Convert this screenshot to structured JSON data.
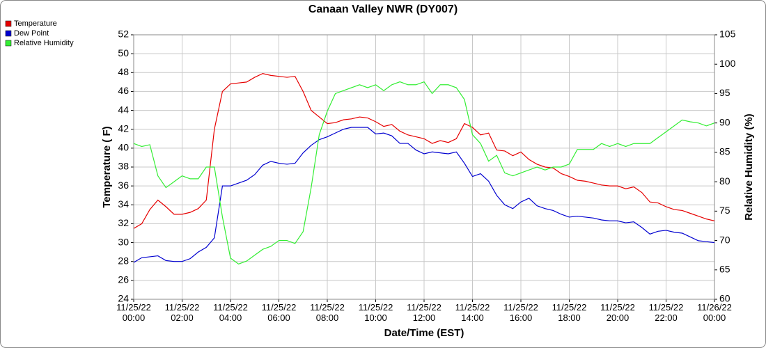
{
  "chart_data": {
    "type": "line",
    "title": "Canaan Valley NWR (DY007)",
    "xlabel": "Date/Time (EST)",
    "ylabel": "Temperature ( F)",
    "y2label": "Relative Humidity (%)",
    "x": [
      "11/25/22 00:00",
      "11/25/22 00:20",
      "11/25/22 00:40",
      "11/25/22 01:00",
      "11/25/22 01:20",
      "11/25/22 01:40",
      "11/25/22 02:00",
      "11/25/22 02:20",
      "11/25/22 02:40",
      "11/25/22 03:00",
      "11/25/22 03:20",
      "11/25/22 03:40",
      "11/25/22 04:00",
      "11/25/22 04:20",
      "11/25/22 04:40",
      "11/25/22 05:00",
      "11/25/22 05:20",
      "11/25/22 05:40",
      "11/25/22 06:00",
      "11/25/22 06:20",
      "11/25/22 06:40",
      "11/25/22 07:00",
      "11/25/22 07:20",
      "11/25/22 07:40",
      "11/25/22 08:00",
      "11/25/22 08:20",
      "11/25/22 08:40",
      "11/25/22 09:00",
      "11/25/22 09:20",
      "11/25/22 09:40",
      "11/25/22 10:00",
      "11/25/22 10:20",
      "11/25/22 10:40",
      "11/25/22 11:00",
      "11/25/22 11:20",
      "11/25/22 11:40",
      "11/25/22 12:00",
      "11/25/22 12:20",
      "11/25/22 12:40",
      "11/25/22 13:00",
      "11/25/22 13:20",
      "11/25/22 13:40",
      "11/25/22 14:00",
      "11/25/22 14:20",
      "11/25/22 14:40",
      "11/25/22 15:00",
      "11/25/22 15:20",
      "11/25/22 15:40",
      "11/25/22 16:00",
      "11/25/22 16:20",
      "11/25/22 16:40",
      "11/25/22 17:00",
      "11/25/22 17:20",
      "11/25/22 17:40",
      "11/25/22 18:00",
      "11/25/22 18:20",
      "11/25/22 18:40",
      "11/25/22 19:00",
      "11/25/22 19:20",
      "11/25/22 19:40",
      "11/25/22 20:00",
      "11/25/22 20:20",
      "11/25/22 20:40",
      "11/25/22 21:00",
      "11/25/22 21:20",
      "11/25/22 21:40",
      "11/25/22 22:00",
      "11/25/22 22:20",
      "11/25/22 22:40",
      "11/25/22 23:00",
      "11/25/22 23:20",
      "11/25/22 23:40",
      "11/26/22 00:00"
    ],
    "series": [
      {
        "name": "Temperature",
        "color": "#e60000",
        "values": [
          31.5,
          32,
          33.5,
          34.5,
          33.8,
          33,
          33,
          33.2,
          33.6,
          34.5,
          42,
          46,
          46.8,
          46.9,
          47,
          47.5,
          47.9,
          47.7,
          47.6,
          47.5,
          47.6,
          46,
          44,
          43.3,
          42.6,
          42.7,
          43,
          43.1,
          43.3,
          43.2,
          42.8,
          42.3,
          42.5,
          41.8,
          41.4,
          41.2,
          41,
          40.5,
          40.8,
          40.6,
          41,
          42.6,
          42.2,
          41.4,
          41.6,
          39.8,
          39.7,
          39.2,
          39.6,
          38.8,
          38.3,
          38,
          37.9,
          37.3,
          37,
          36.6,
          36.5,
          36.3,
          36.1,
          36,
          36,
          35.7,
          35.9,
          35.3,
          34.3,
          34.2,
          33.8,
          33.5,
          33.4,
          33.1,
          32.8,
          32.5,
          32.3
        ]
      },
      {
        "name": "Dew Point",
        "color": "#0000d0",
        "values": [
          27.9,
          28.4,
          28.5,
          28.6,
          28.1,
          28,
          28,
          28.3,
          29,
          29.5,
          30.5,
          36,
          36,
          36.3,
          36.6,
          37.2,
          38.2,
          38.6,
          38.4,
          38.3,
          38.4,
          39.5,
          40.3,
          40.9,
          41.2,
          41.6,
          42,
          42.2,
          42.2,
          42.2,
          41.5,
          41.6,
          41.3,
          40.5,
          40.5,
          39.8,
          39.4,
          39.6,
          39.5,
          39.4,
          39.6,
          38.4,
          37,
          37.3,
          36.5,
          35,
          34,
          33.6,
          34.3,
          34.7,
          33.9,
          33.6,
          33.4,
          33,
          32.7,
          32.8,
          32.7,
          32.6,
          32.4,
          32.3,
          32.3,
          32.1,
          32.2,
          31.6,
          30.9,
          31.2,
          31.3,
          31.1,
          31,
          30.6,
          30.2,
          30.1,
          30
        ]
      },
      {
        "name": "Relative Humidity",
        "color": "#33ee33",
        "axis": "y2",
        "values": [
          86.5,
          86,
          86.3,
          81,
          79,
          80,
          81,
          80.5,
          80.5,
          82.5,
          82.5,
          74,
          67,
          66,
          66.5,
          67.5,
          68.5,
          69,
          70,
          70,
          69.5,
          71.5,
          79,
          88,
          92,
          95,
          95.5,
          96,
          96.5,
          96,
          96.5,
          95.5,
          96.5,
          97,
          96.5,
          96.5,
          97,
          95,
          96.5,
          96.5,
          96,
          94,
          88,
          86.5,
          83.5,
          84.5,
          81.5,
          81,
          81.5,
          82,
          82.5,
          82,
          82.5,
          82.5,
          83,
          85.5,
          85.5,
          85.5,
          86.5,
          86,
          86.5,
          86,
          86.5,
          86.5,
          86.5,
          87.5,
          88.5,
          89.5,
          90.5,
          90.2,
          90,
          89.5,
          90
        ]
      }
    ],
    "xlim": [
      "11/25/22 00:00",
      "11/26/22 00:00"
    ],
    "xticks": [
      "11/25/22 00:00",
      "11/25/22 02:00",
      "11/25/22 04:00",
      "11/25/22 06:00",
      "11/25/22 08:00",
      "11/25/22 10:00",
      "11/25/22 12:00",
      "11/25/22 14:00",
      "11/25/22 16:00",
      "11/25/22 18:00",
      "11/25/22 20:00",
      "11/25/22 22:00",
      "11/26/22 00:00"
    ],
    "ylim": [
      24,
      52
    ],
    "yticks": [
      24,
      26,
      28,
      30,
      32,
      34,
      36,
      38,
      40,
      42,
      44,
      46,
      48,
      50,
      52
    ],
    "y2lim": [
      60,
      105
    ],
    "y2ticks": [
      60,
      65,
      70,
      75,
      80,
      85,
      90,
      95,
      100,
      105
    ],
    "grid": true,
    "legend": "top-left"
  }
}
